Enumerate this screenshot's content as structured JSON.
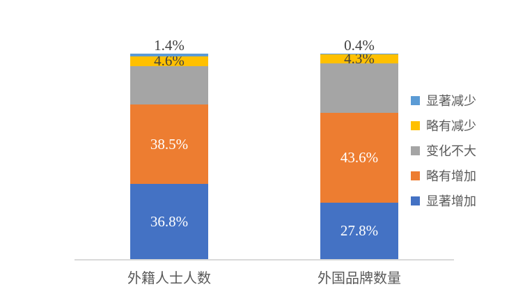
{
  "chart_data": {
    "type": "bar",
    "stacking": "100%-stacked",
    "orientation": "vertical",
    "categories": [
      "外籍人士人数",
      "外国品牌数量"
    ],
    "series": [
      {
        "name": "显著增加",
        "color": "#4472C4",
        "values": [
          36.8,
          27.8
        ],
        "data_labels": [
          "36.8%",
          "27.8%"
        ],
        "label_style": "inside-white"
      },
      {
        "name": "略有增加",
        "color": "#ED7D31",
        "values": [
          38.5,
          43.6
        ],
        "data_labels": [
          "38.5%",
          "43.6%"
        ],
        "label_style": "inside-white"
      },
      {
        "name": "变化不大",
        "color": "#A5A5A5",
        "values": [
          18.7,
          23.9
        ],
        "data_labels": [
          "",
          ""
        ],
        "label_style": "none"
      },
      {
        "name": "略有减少",
        "color": "#FFC000",
        "values": [
          4.6,
          4.3
        ],
        "data_labels": [
          "4.6%",
          "4.3%"
        ],
        "label_style": "inside-dark"
      },
      {
        "name": "显著减少",
        "color": "#5B9BD5",
        "values": [
          1.4,
          0.4
        ],
        "data_labels": [
          "1.4%",
          "0.4%"
        ],
        "label_style": "above-dark"
      }
    ],
    "legend": {
      "position": "right",
      "entries": [
        {
          "label": "显著减少",
          "color": "#5B9BD5"
        },
        {
          "label": "略有减少",
          "color": "#FFC000"
        },
        {
          "label": "变化不大",
          "color": "#A5A5A5"
        },
        {
          "label": "略有增加",
          "color": "#ED7D31"
        },
        {
          "label": "显著增加",
          "color": "#4472C4"
        }
      ]
    },
    "ylim": [
      0,
      100
    ],
    "grid": false,
    "axis_line_color": "#D9D9D9"
  },
  "text_colors": {
    "data_label_light": "#FFFFFF",
    "data_label_dark": "#404040",
    "category": "#595959",
    "legend": "#595959"
  }
}
